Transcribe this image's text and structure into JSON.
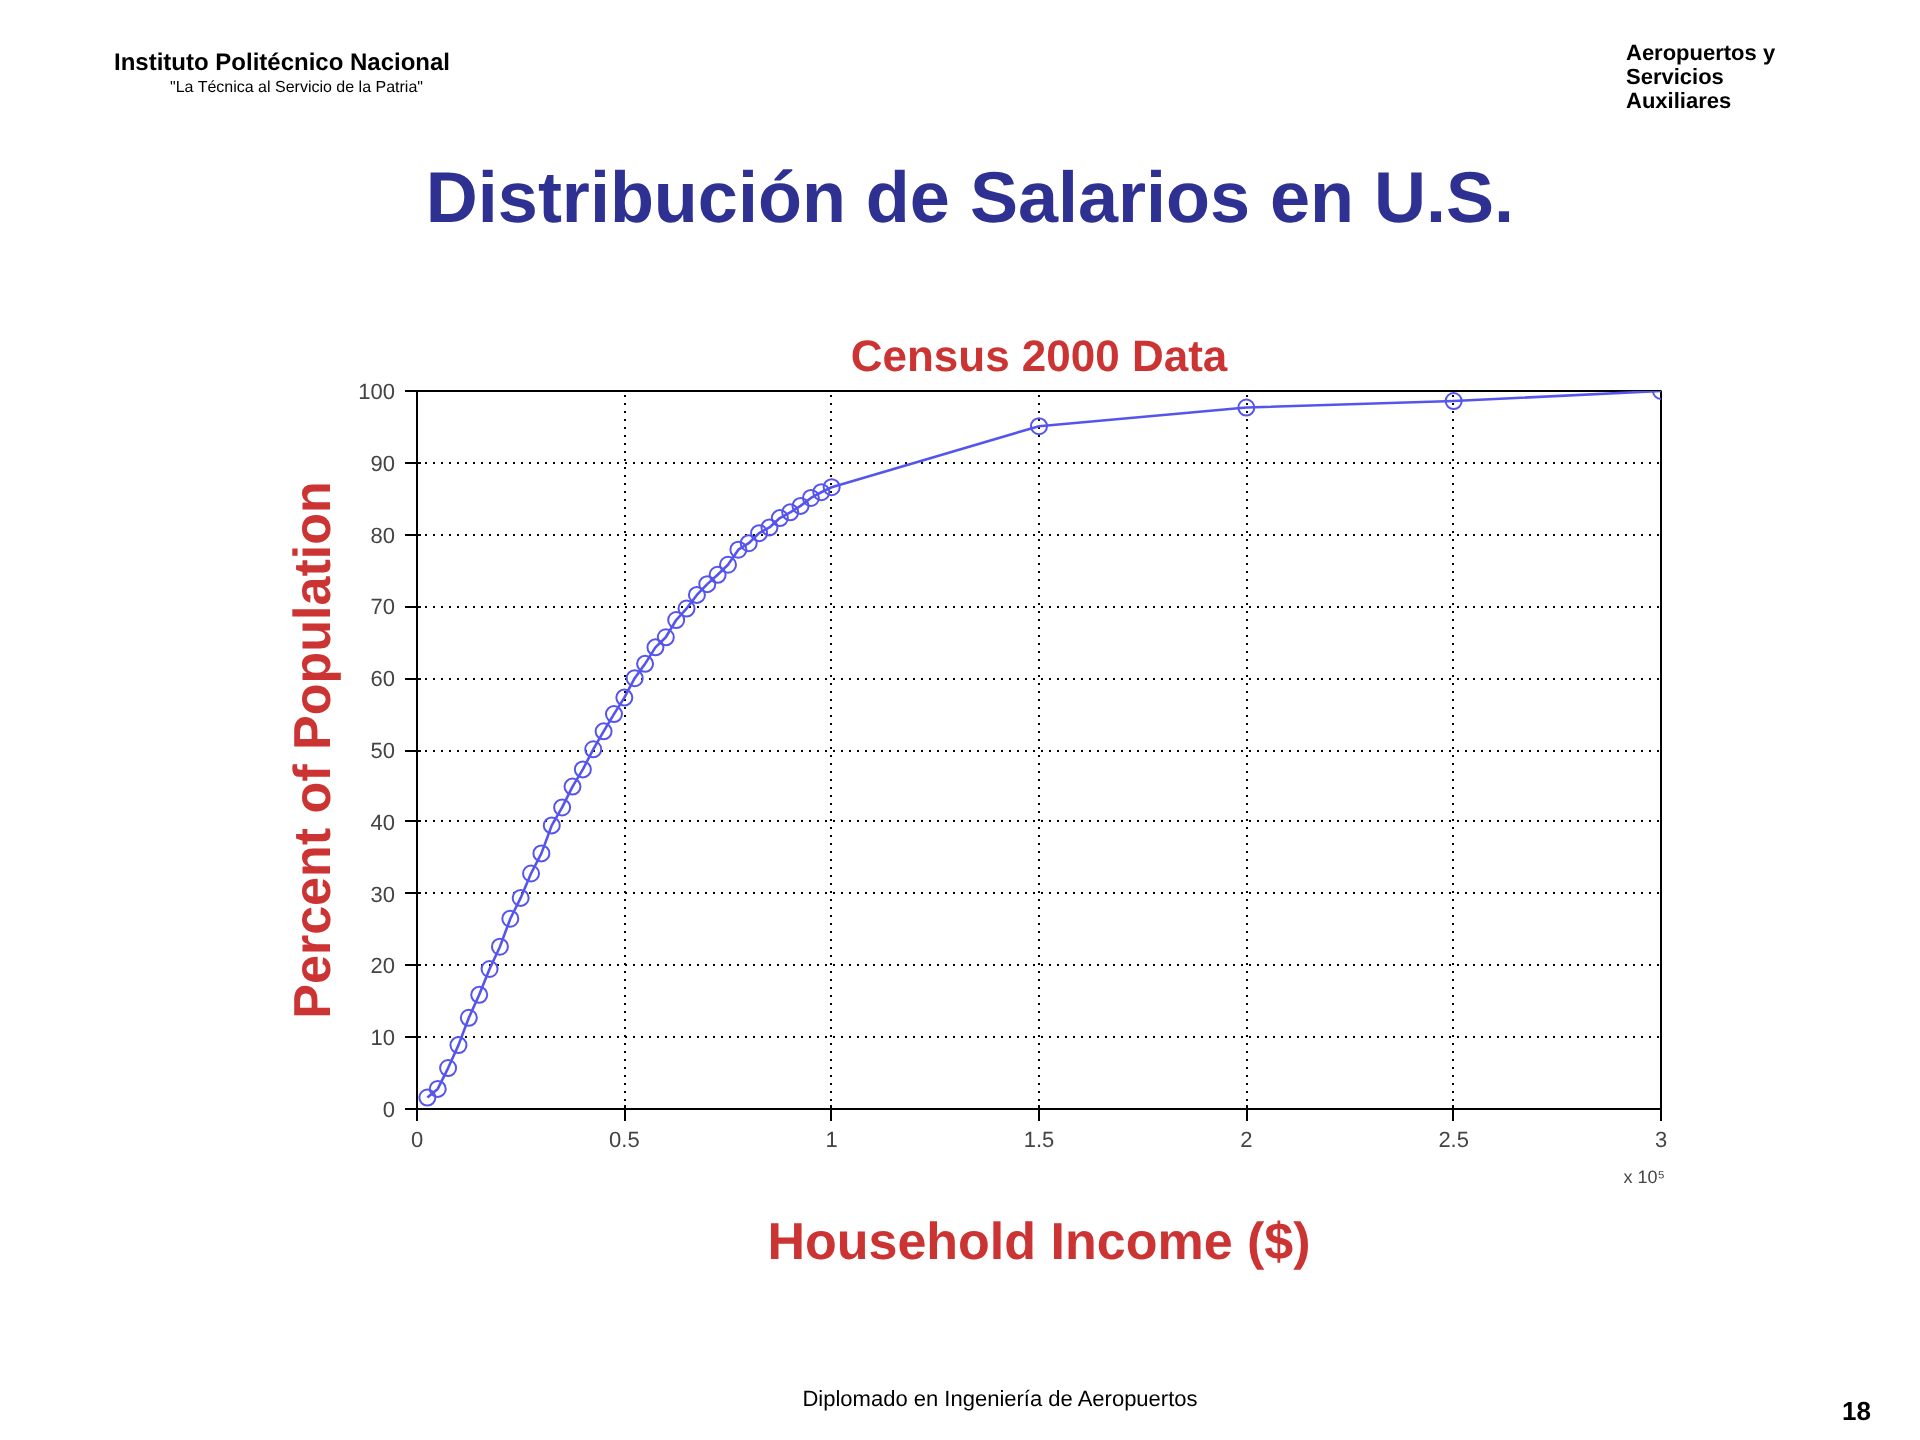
{
  "chart_data": {
    "type": "line",
    "title": "Distribución de Salarios en U.S.",
    "subtitle": "Census 2000 Data",
    "xlabel": "Household Income ($)",
    "ylabel": "Percent of Population",
    "x": [
      0.025,
      0.05,
      0.075,
      0.1,
      0.125,
      0.15,
      0.175,
      0.2,
      0.225,
      0.25,
      0.275,
      0.3,
      0.325,
      0.35,
      0.375,
      0.4,
      0.425,
      0.45,
      0.475,
      0.5,
      0.525,
      0.55,
      0.575,
      0.6,
      0.625,
      0.65,
      0.675,
      0.7,
      0.725,
      0.75,
      0.775,
      0.8,
      0.825,
      0.85,
      0.875,
      0.9,
      0.925,
      0.95,
      0.975,
      1.0,
      1.5,
      2.0,
      2.5,
      3.0
    ],
    "series": [
      {
        "color": "#5555ee",
        "values": [
          1.6,
          2.8,
          5.7,
          8.9,
          12.7,
          15.9,
          19.5,
          22.6,
          26.5,
          29.4,
          32.8,
          35.6,
          39.5,
          42,
          44.9,
          47.3,
          50.1,
          52.6,
          55,
          57.3,
          60,
          62,
          64.3,
          65.7,
          68.1,
          69.7,
          71.6,
          73.1,
          74.4,
          75.8,
          77.9,
          78.8,
          80.2,
          81,
          82.3,
          83.1,
          84,
          85.1,
          85.9,
          86.6,
          95.1,
          97.7,
          98.6,
          100
        ]
      }
    ],
    "xlim": [
      0,
      3
    ],
    "xticks": [
      0,
      0.5,
      1,
      1.5,
      2,
      2.5,
      3
    ],
    "ylim": [
      0,
      100
    ],
    "yticks": [
      0,
      10,
      20,
      30,
      40,
      50,
      60,
      70,
      80,
      90,
      100
    ],
    "grid": true,
    "marker": "circle",
    "line_style": "solid",
    "annotations": [
      "Instituto Politécnico Nacional",
      "\"La Técnica al Servicio de la Patria\"",
      "Aeropuertos y Servicios Auxiliares",
      "x 10⁵",
      "Diplomado en Ingeniería de Aeropuertos",
      "18"
    ]
  }
}
